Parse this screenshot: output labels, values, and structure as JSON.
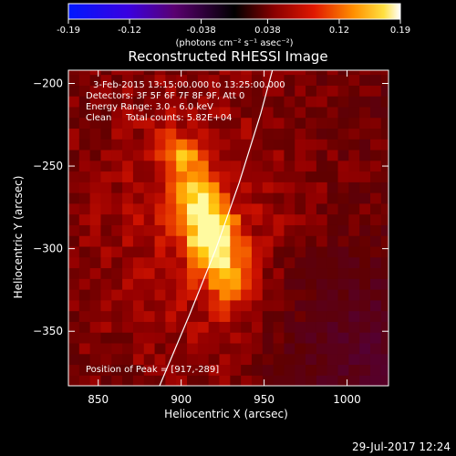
{
  "colorbar": {
    "ticks": [
      "-0.19",
      "-0.12",
      "-0.038",
      "0.038",
      "0.12",
      "0.19"
    ],
    "tick_values": [
      -0.19,
      -0.12,
      -0.038,
      0.038,
      0.12,
      0.19
    ],
    "range": [
      -0.19,
      0.19
    ],
    "unit": "(photons cm⁻² s⁻¹ asec⁻²)"
  },
  "chart_data": {
    "type": "heatmap",
    "title": "Reconstructed RHESSI Image",
    "xlabel": "Heliocentric X (arcsec)",
    "ylabel": "Heliocentric Y (arcsec)",
    "xlim": [
      832,
      1025
    ],
    "ylim": [
      -383,
      -192
    ],
    "x_ticks": [
      850,
      900,
      950,
      1000
    ],
    "y_ticks": [
      -200,
      -250,
      -300,
      -350
    ],
    "x_tick_labels": [
      "850",
      "900",
      "950",
      "1000"
    ],
    "y_tick_labels": [
      "−200",
      "−250",
      "−300",
      "−350"
    ],
    "source_peak": [
      917,
      -289
    ],
    "limb_curve": [
      [
        887,
        -383
      ],
      [
        905,
        -340
      ],
      [
        921,
        -300
      ],
      [
        935,
        -260
      ],
      [
        948,
        -218
      ],
      [
        955,
        -192
      ]
    ],
    "annotations": [
      "3-Feb-2015 13:15:00.000 to 13:25:00.000",
      "Detectors: 3F 5F 6F 7F 8F 9F, Att 0",
      "Energy Range: 3.0 - 6.0 keV",
      "Clean     Total counts: 5.82E+04",
      "Position of Peak = [917,-289]"
    ]
  },
  "footer": {
    "timestamp": "29-Jul-2017 12:24"
  }
}
